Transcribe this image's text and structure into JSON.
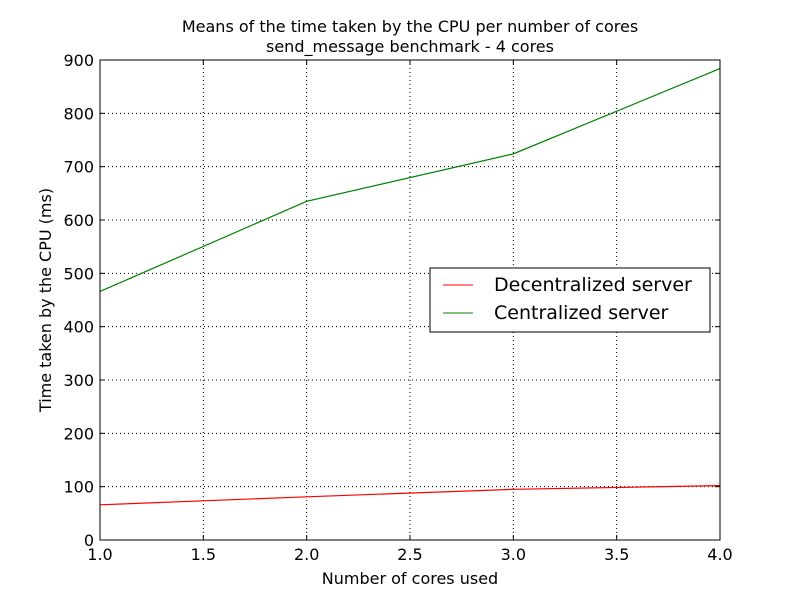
{
  "chart_data": {
    "type": "line",
    "title": "Means of the time taken by the CPU per number of cores",
    "subtitle": "send_message benchmark - 4 cores",
    "xlabel": "Number of cores used",
    "ylabel": "Time taken by the CPU (ms)",
    "xlim": [
      1.0,
      4.0
    ],
    "ylim": [
      0,
      900
    ],
    "x_ticks": [
      "1.0",
      "1.5",
      "2.0",
      "2.5",
      "3.0",
      "3.5",
      "4.0"
    ],
    "y_ticks": [
      "0",
      "100",
      "200",
      "300",
      "400",
      "500",
      "600",
      "700",
      "800",
      "900"
    ],
    "grid": true,
    "legend_position": "center-right",
    "x": [
      1,
      2,
      3,
      4
    ],
    "series": [
      {
        "name": "Decentralized server",
        "color": "#ff0000",
        "values": [
          66,
          81,
          95,
          102
        ]
      },
      {
        "name": "Centralized server",
        "color": "#008000",
        "values": [
          466,
          635,
          724,
          884
        ]
      }
    ]
  }
}
